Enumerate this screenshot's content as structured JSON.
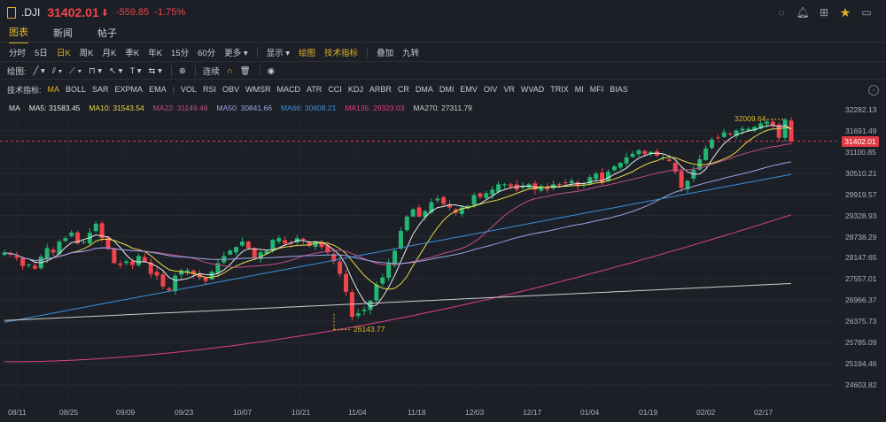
{
  "header": {
    "symbol": ".DJI",
    "price": "31402.01",
    "arrow": "⬇",
    "change": "-559.85",
    "change_pct": "-1.75%"
  },
  "tabs": [
    {
      "label": "图表",
      "active": true
    },
    {
      "label": "新闻",
      "active": false
    },
    {
      "label": "帖子",
      "active": false
    }
  ],
  "periods": [
    {
      "label": "分时"
    },
    {
      "label": "5日"
    },
    {
      "label": "日K",
      "active": true
    },
    {
      "label": "周K"
    },
    {
      "label": "月K"
    },
    {
      "label": "季K"
    },
    {
      "label": "年K"
    },
    {
      "label": "15分"
    },
    {
      "label": "60分"
    },
    {
      "label": "更多 ▾"
    }
  ],
  "period_tools": {
    "display": "显示 ▾",
    "draw": "绘图",
    "tech": "技术指标",
    "overlay": "叠加",
    "nine": "九转"
  },
  "drawing_tools": {
    "label": "绘图:",
    "connect": "连续"
  },
  "indicators": {
    "label": "技术指标:",
    "items": [
      "MA",
      "BOLL",
      "SAR",
      "EXPMA",
      "EMA",
      "|",
      "VOL",
      "RSI",
      "OBV",
      "WMSR",
      "MACD",
      "ATR",
      "CCI",
      "KDJ",
      "ARBR",
      "CR",
      "DMA",
      "DMI",
      "EMV",
      "OIV",
      "VR",
      "WVAD",
      "TRIX",
      "MI",
      "MFI",
      "BIAS"
    ],
    "active": "MA"
  },
  "ma_legend": {
    "title": "MA",
    "items": [
      {
        "label": "MA5: 31583.45",
        "color": "#e8e8e8"
      },
      {
        "label": "MA10: 31543.54",
        "color": "#e8d84a"
      },
      {
        "label": "MA22: 31149.46",
        "color": "#c0508a"
      },
      {
        "label": "MA50: 30841.66",
        "color": "#9aa6e6"
      },
      {
        "label": "MA66: 30608.21",
        "color": "#3c8fd8"
      },
      {
        "label": "MA135: 29323.03",
        "color": "#e0408a"
      },
      {
        "label": "MA270: 27311.79",
        "color": "#cfcfcf"
      }
    ]
  },
  "chart_data": {
    "type": "candlestick",
    "y_ticks": [
      "32282.13",
      "31691.49",
      "31100.85",
      "30510.21",
      "29919.57",
      "29328.93",
      "28738.29",
      "28147.65",
      "27557.01",
      "26966.37",
      "26375.73",
      "25785.09",
      "25194.46",
      "24603.82"
    ],
    "ylim": [
      24603.82,
      32282.13
    ],
    "x_labels": [
      "08/11",
      "08/25",
      "09/09",
      "09/23",
      "10/07",
      "10/21",
      "11/04",
      "11/18",
      "12/03",
      "12/17",
      "01/04",
      "01/19",
      "02/02",
      "02/17"
    ],
    "current_price": "31402.01",
    "high_annotation": "32009.64",
    "low_annotation": "26143.77",
    "up_color": "#22b573",
    "down_color": "#f2434a",
    "closes": [
      28291,
      28250,
      28150,
      27920,
      27960,
      27850,
      28180,
      28420,
      28300,
      28600,
      28700,
      28850,
      28550,
      28600,
      28850,
      29100,
      28700,
      28400,
      28000,
      27950,
      28050,
      27950,
      28200,
      28050,
      27700,
      27650,
      27350,
      27250,
      27650,
      27800,
      27800,
      27700,
      27600,
      27500,
      27760,
      28000,
      28200,
      28350,
      28450,
      28600,
      28420,
      28150,
      28300,
      28340,
      28650,
      28700,
      28550,
      28550,
      28700,
      28650,
      28480,
      28600,
      28450,
      28300,
      28050,
      27700,
      27200,
      26500,
      26600,
      26700,
      26950,
      27400,
      27600,
      28000,
      28350,
      28900,
      29300,
      29500,
      29300,
      29450,
      29700,
      29800,
      29650,
      29550,
      29400,
      29550,
      29600,
      29900,
      29850,
      29950,
      30050,
      30200,
      30200,
      30150,
      30050,
      30150,
      30200,
      30050,
      30150,
      30050,
      30200,
      30200,
      30250,
      30300,
      30150,
      30200,
      30400,
      30500,
      30250,
      30550,
      30700,
      30800,
      30950,
      31050,
      31150,
      31050,
      31100,
      31000,
      30950,
      30850,
      30550,
      30100,
      30300,
      30600,
      30900,
      31200,
      31450,
      31500,
      31650,
      31600,
      31700,
      31750,
      31750,
      31800,
      31900,
      31950,
      31850,
      31500,
      32009,
      31402
    ]
  }
}
